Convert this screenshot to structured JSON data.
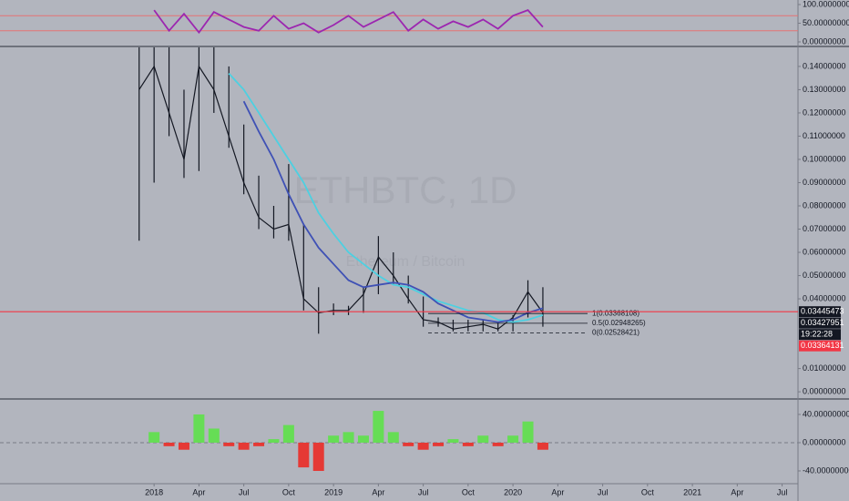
{
  "chart_data": [
    {
      "type": "line",
      "x": [
        "2018-01",
        "2018-02",
        "2018-03",
        "2018-04",
        "2018-05",
        "2018-06",
        "2018-07",
        "2018-08",
        "2018-09",
        "2018-10",
        "2018-11",
        "2018-12",
        "2019-01",
        "2019-02",
        "2019-03",
        "2019-04",
        "2019-05",
        "2019-06",
        "2019-07",
        "2019-08",
        "2019-09",
        "2019-10",
        "2019-11",
        "2019-12",
        "2020-01",
        "2020-02",
        "2020-03"
      ],
      "series": [
        {
          "color": "#9c27b0",
          "values": [
            85,
            30,
            75,
            25,
            80,
            60,
            40,
            30,
            70,
            35,
            50,
            25,
            45,
            70,
            40,
            60,
            80,
            30,
            60,
            35,
            55,
            40,
            60,
            35,
            70,
            85,
            40
          ]
        }
      ],
      "bands": [
        70,
        30
      ],
      "band_color": "#e57373",
      "xlim": [
        "2017-03",
        "2021-08"
      ],
      "ylim": [
        -9.8,
        112.2
      ],
      "yticks": [
        {
          "value": 100,
          "label": "100.00000000"
        },
        {
          "value": 50,
          "label": "50.00000000"
        },
        {
          "value": 0,
          "label": "0.00000000"
        }
      ]
    },
    {
      "type": "line",
      "watermark": "ETHBTC, 1D",
      "watermark_subtitle": "Ethereum / Bitcoin",
      "x": [
        "2017-12",
        "2018-01",
        "2018-02",
        "2018-03",
        "2018-04",
        "2018-05",
        "2018-06",
        "2018-07",
        "2018-08",
        "2018-09",
        "2018-10",
        "2018-11",
        "2018-12",
        "2019-01",
        "2019-02",
        "2019-03",
        "2019-04",
        "2019-05",
        "2019-06",
        "2019-07",
        "2019-08",
        "2019-09",
        "2019-10",
        "2019-11",
        "2019-12",
        "2020-01",
        "2020-02",
        "2020-03"
      ],
      "series": [
        {
          "color": "#131722",
          "values": [
            0.13,
            0.14,
            0.12,
            0.1,
            0.14,
            0.13,
            0.11,
            0.09,
            0.075,
            0.07,
            0.072,
            0.04,
            0.034,
            0.035,
            0.035,
            0.042,
            0.058,
            0.05,
            0.04,
            0.031,
            0.03,
            0.027,
            0.028,
            0.029,
            0.027,
            0.032,
            0.043,
            0.034
          ]
        },
        {
          "color": "#4dd0e1",
          "values": [
            null,
            null,
            null,
            null,
            null,
            null,
            0.137,
            0.13,
            0.12,
            0.11,
            0.1,
            0.09,
            0.077,
            0.068,
            0.06,
            0.055,
            0.05,
            0.046,
            0.045,
            0.042,
            0.039,
            0.037,
            0.035,
            0.034,
            0.031,
            0.03,
            0.031,
            0.033
          ]
        },
        {
          "color": "#3f51b5",
          "values": [
            null,
            null,
            null,
            null,
            null,
            null,
            null,
            0.125,
            0.112,
            0.1,
            0.085,
            0.072,
            0.062,
            0.055,
            0.048,
            0.045,
            0.046,
            0.047,
            0.046,
            0.043,
            0.038,
            0.035,
            0.032,
            0.031,
            0.03,
            0.031,
            0.034,
            0.036
          ]
        }
      ],
      "high": [
        0.149,
        0.149,
        0.149,
        0.13,
        0.149,
        0.149,
        0.14,
        0.115,
        0.093,
        0.08,
        0.098,
        0.072,
        0.045,
        0.038,
        0.037,
        0.045,
        0.067,
        0.06,
        0.05,
        0.041,
        0.032,
        0.031,
        0.031,
        0.031,
        0.03,
        0.033,
        0.048,
        0.045
      ],
      "low": [
        0.065,
        0.09,
        0.11,
        0.092,
        0.095,
        0.12,
        0.105,
        0.085,
        0.07,
        0.066,
        0.065,
        0.035,
        0.025,
        0.033,
        0.033,
        0.034,
        0.042,
        0.046,
        0.038,
        0.028,
        0.028,
        0.026,
        0.026,
        0.026,
        0.026,
        0.026,
        0.032,
        0.028
      ],
      "fib_levels": [
        {
          "value": 0.03368108,
          "label": "1(0.03368108)"
        },
        {
          "value": 0.02948265,
          "label": "0.5(0.02948265)"
        },
        {
          "value": 0.02528421,
          "label": "0(0.02528421)"
        }
      ],
      "price_labels": [
        0.03445473,
        0.03427951,
        0.03364131
      ],
      "price_label_colors": [
        "#131722",
        "#131722",
        "#f23645"
      ],
      "countdown": "19:22:28",
      "xlim": [
        "2017-03",
        "2021-08"
      ],
      "ylim": [
        -0.0027,
        0.1482
      ],
      "yticks": [
        {
          "value": 0.14,
          "label": "0.14000000"
        },
        {
          "value": 0.13,
          "label": "0.13000000"
        },
        {
          "value": 0.12,
          "label": "0.12000000"
        },
        {
          "value": 0.11,
          "label": "0.11000000"
        },
        {
          "value": 0.1,
          "label": "0.10000000"
        },
        {
          "value": 0.09,
          "label": "0.09000000"
        },
        {
          "value": 0.08,
          "label": "0.08000000"
        },
        {
          "value": 0.07,
          "label": "0.07000000"
        },
        {
          "value": 0.06,
          "label": "0.06000000"
        },
        {
          "value": 0.05,
          "label": "0.05000000"
        },
        {
          "value": 0.04,
          "label": "0.04000000"
        },
        {
          "value": 0.01,
          "label": "0.01000000"
        },
        {
          "value": 0,
          "label": "0.00000000"
        }
      ]
    },
    {
      "type": "bar",
      "x": [
        "2018-01",
        "2018-02",
        "2018-03",
        "2018-04",
        "2018-05",
        "2018-06",
        "2018-07",
        "2018-08",
        "2018-09",
        "2018-10",
        "2018-11",
        "2018-12",
        "2019-01",
        "2019-02",
        "2019-03",
        "2019-04",
        "2019-05",
        "2019-06",
        "2019-07",
        "2019-08",
        "2019-09",
        "2019-10",
        "2019-11",
        "2019-12",
        "2020-01",
        "2020-02",
        "2020-03"
      ],
      "values": [
        15,
        -5,
        -10,
        40,
        20,
        -5,
        -10,
        -5,
        5,
        25,
        -35,
        -40,
        10,
        15,
        10,
        45,
        15,
        -5,
        -10,
        -5,
        5,
        -5,
        10,
        -5,
        10,
        30,
        -10
      ],
      "positive_color": "#66dd55",
      "negative_color": "#e53935",
      "xlim": [
        "2017-03",
        "2021-08"
      ],
      "ylim": [
        -56.8,
        60.6
      ],
      "yticks": [
        {
          "value": 40,
          "label": "40.00000000"
        },
        {
          "value": 0,
          "label": "0.00000000"
        },
        {
          "value": -40,
          "label": "-40.00000000"
        }
      ],
      "xticks": [
        {
          "value": "2018-01",
          "label": "2018"
        },
        {
          "value": "2018-04",
          "label": "Apr"
        },
        {
          "value": "2018-07",
          "label": "Jul"
        },
        {
          "value": "2018-10",
          "label": "Oct"
        },
        {
          "value": "2019-01",
          "label": "2019"
        },
        {
          "value": "2019-04",
          "label": "Apr"
        },
        {
          "value": "2019-07",
          "label": "Jul"
        },
        {
          "value": "2019-10",
          "label": "Oct"
        },
        {
          "value": "2020-01",
          "label": "2020"
        },
        {
          "value": "2020-04",
          "label": "Apr"
        },
        {
          "value": "2020-07",
          "label": "Jul"
        },
        {
          "value": "2020-10",
          "label": "Oct"
        },
        {
          "value": "2021-01",
          "label": "2021"
        },
        {
          "value": "2021-04",
          "label": "Apr"
        },
        {
          "value": "2021-07",
          "label": "Jul"
        }
      ]
    }
  ]
}
